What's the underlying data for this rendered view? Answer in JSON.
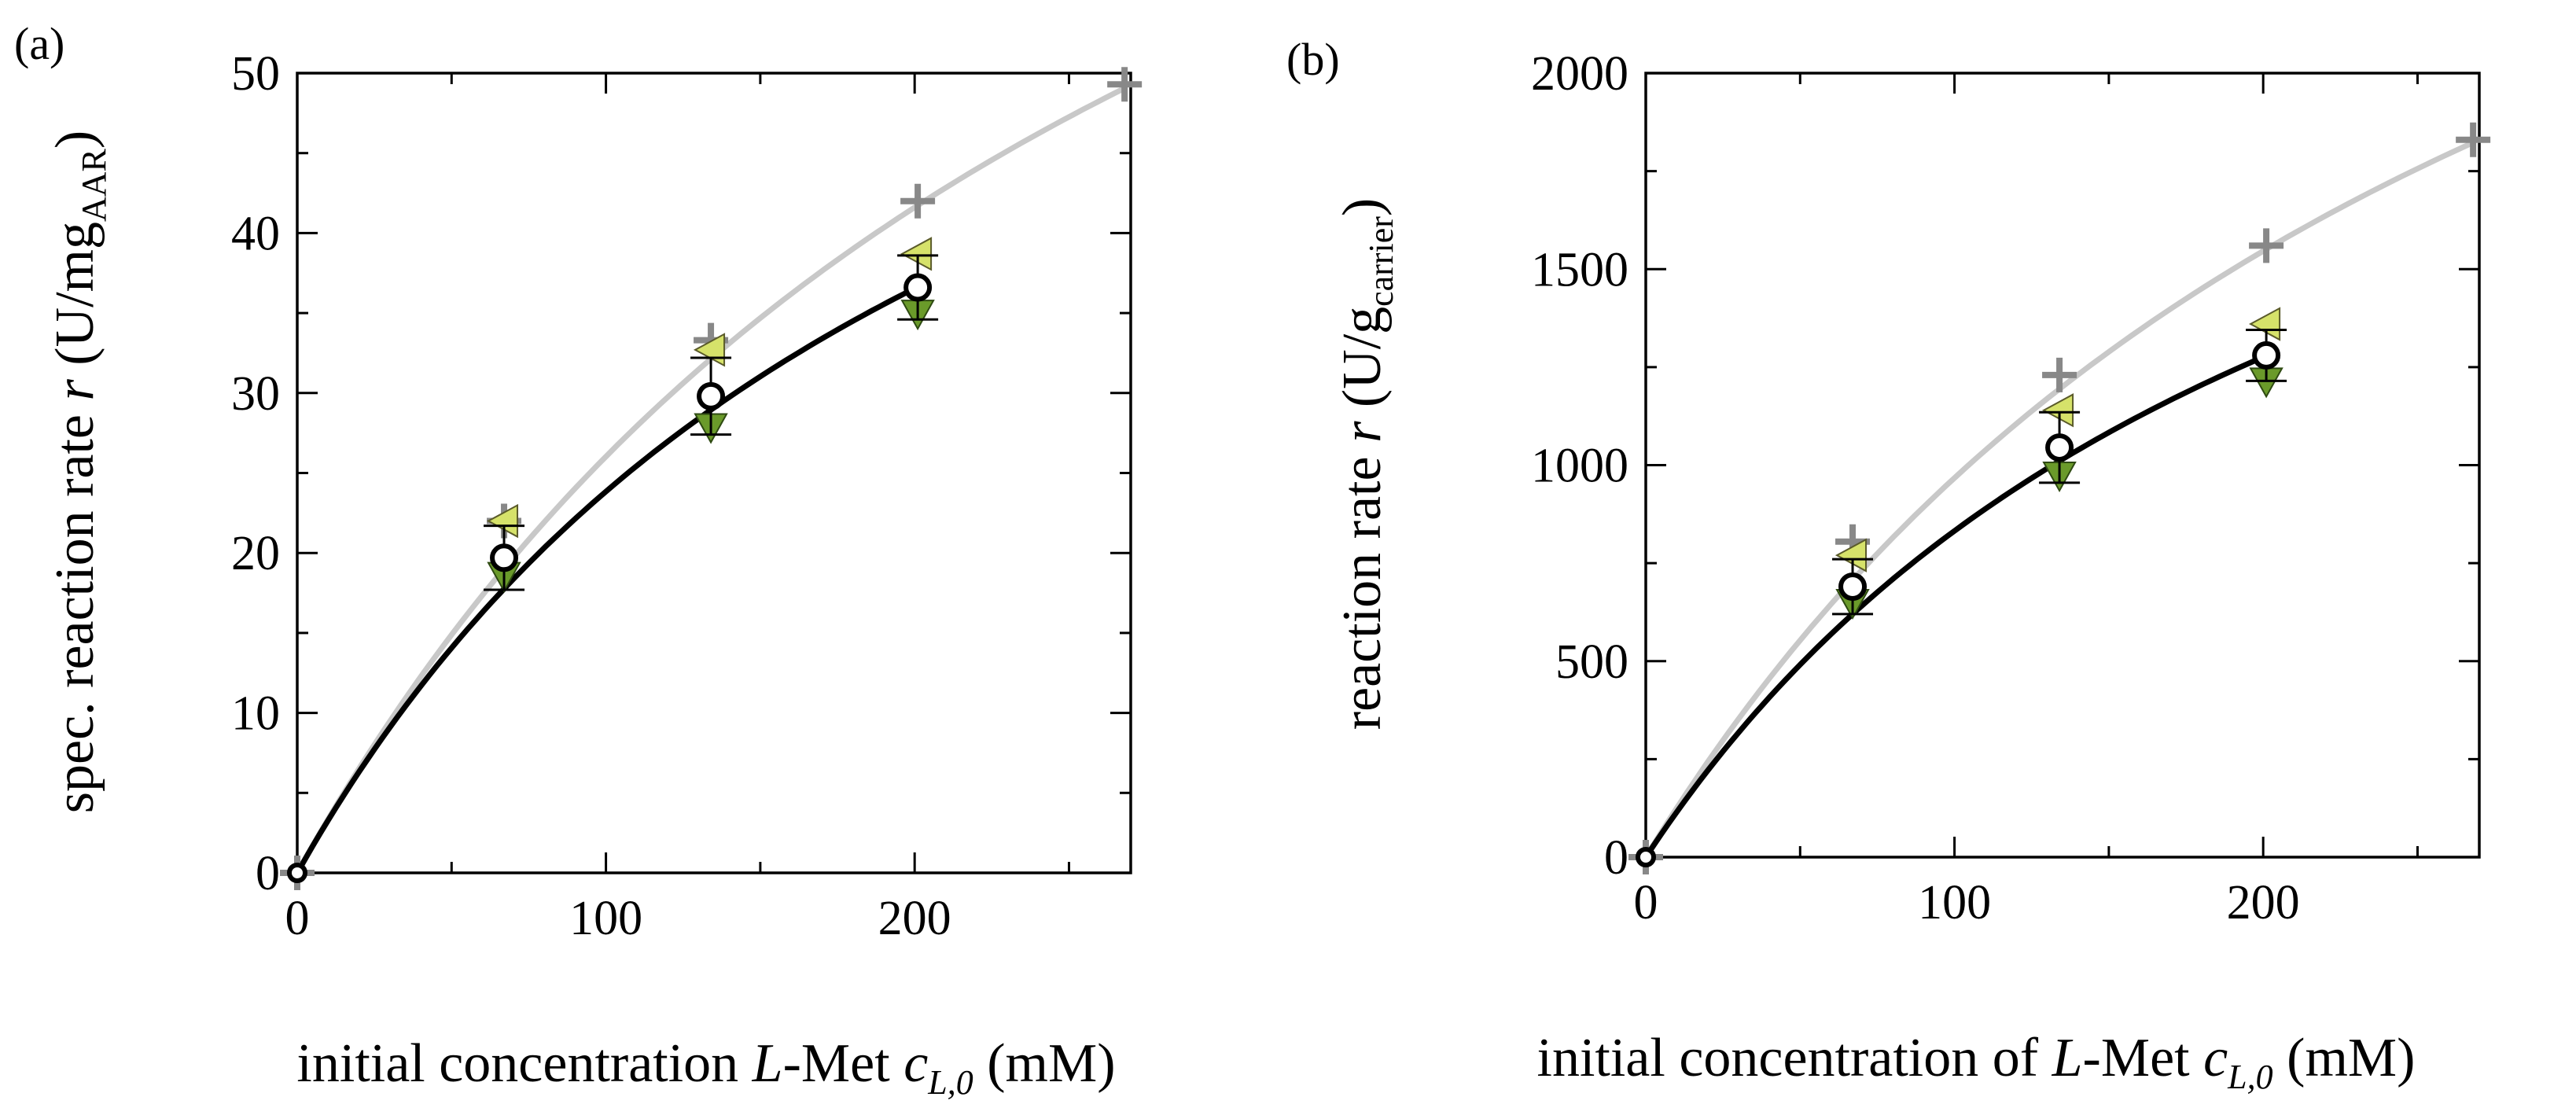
{
  "chart_data": [
    {
      "type": "scatter",
      "panel_label": "(a)",
      "xlabel": {
        "pre": "initial concentration ",
        "L": "L",
        "mid": "-Met ",
        "c": "c",
        "sub": "L,0",
        "unit": " (mM)"
      },
      "ylabel": {
        "pre": "spec. reaction rate ",
        "r": "r",
        "unit_pre": " (U/mg",
        "sub": "AAR",
        "unit_post": ")"
      },
      "xlim": [
        0,
        270
      ],
      "ylim": [
        0,
        50
      ],
      "xticks": [
        0,
        100,
        200
      ],
      "yticks": [
        0,
        10,
        20,
        30,
        40,
        50
      ],
      "grid": false,
      "series": [
        {
          "name": "plus",
          "marker": "+",
          "color": "#888888",
          "x": [
            0,
            67,
            134,
            201,
            268
          ],
          "y": [
            0,
            22,
            33.3,
            42,
            49.3
          ]
        },
        {
          "name": "left-triangle",
          "marker": "triangle-left",
          "color": "#d6e26a",
          "x": [
            67,
            134,
            201
          ],
          "y": [
            22,
            32.7,
            38.7
          ]
        },
        {
          "name": "down-triangle",
          "marker": "triangle-down",
          "color": "#6a9a2a",
          "x": [
            67,
            134,
            201
          ],
          "y": [
            18.6,
            27.9,
            35
          ]
        },
        {
          "name": "mean",
          "marker": "open-circle",
          "color": "#000000",
          "x": [
            0,
            67,
            134,
            201
          ],
          "y": [
            0,
            19.7,
            29.8,
            36.6
          ],
          "yerr": [
            0,
            2,
            2.4,
            2
          ]
        }
      ],
      "fits": [
        {
          "name": "fit-plus",
          "color": "#c8c8c8",
          "x_end": 268,
          "vmax": 103.6,
          "km": 298
        },
        {
          "name": "fit-mean",
          "color": "#000000",
          "x_end": 201,
          "vmax": 78.2,
          "km": 228
        }
      ]
    },
    {
      "type": "scatter",
      "panel_label": "(b)",
      "xlabel": {
        "pre": "initial concentration of ",
        "L": "L",
        "mid": "-Met ",
        "c": "c",
        "sub": "L,0",
        "unit": " (mM)"
      },
      "ylabel": {
        "pre": "reaction rate ",
        "r": "r",
        "unit_pre": " (U/g",
        "sub": "carrier",
        "unit_post": ")"
      },
      "xlim": [
        0,
        270
      ],
      "ylim": [
        0,
        2000
      ],
      "xticks": [
        0,
        100,
        200
      ],
      "yticks": [
        0,
        500,
        1000,
        1500,
        2000
      ],
      "grid": false,
      "series": [
        {
          "name": "plus",
          "marker": "+",
          "color": "#888888",
          "x": [
            0,
            67,
            134,
            201,
            268
          ],
          "y": [
            0,
            805,
            1230,
            1560,
            1830
          ]
        },
        {
          "name": "left-triangle",
          "marker": "triangle-left",
          "color": "#d6e26a",
          "x": [
            67,
            134,
            201
          ],
          "y": [
            770,
            1140,
            1360
          ]
        },
        {
          "name": "down-triangle",
          "marker": "triangle-down",
          "color": "#6a9a2a",
          "x": [
            67,
            134,
            201
          ],
          "y": [
            650,
            975,
            1215
          ]
        },
        {
          "name": "mean",
          "marker": "open-circle",
          "color": "#000000",
          "x": [
            0,
            67,
            134,
            201
          ],
          "y": [
            0,
            690,
            1045,
            1280
          ],
          "yerr": [
            0,
            70,
            90,
            65
          ]
        }
      ],
      "fits": [
        {
          "name": "fit-plus",
          "color": "#c8c8c8",
          "x_end": 268,
          "vmax": 3850,
          "km": 298
        },
        {
          "name": "fit-mean",
          "color": "#000000",
          "x_end": 201,
          "vmax": 2730,
          "km": 228
        }
      ]
    }
  ]
}
